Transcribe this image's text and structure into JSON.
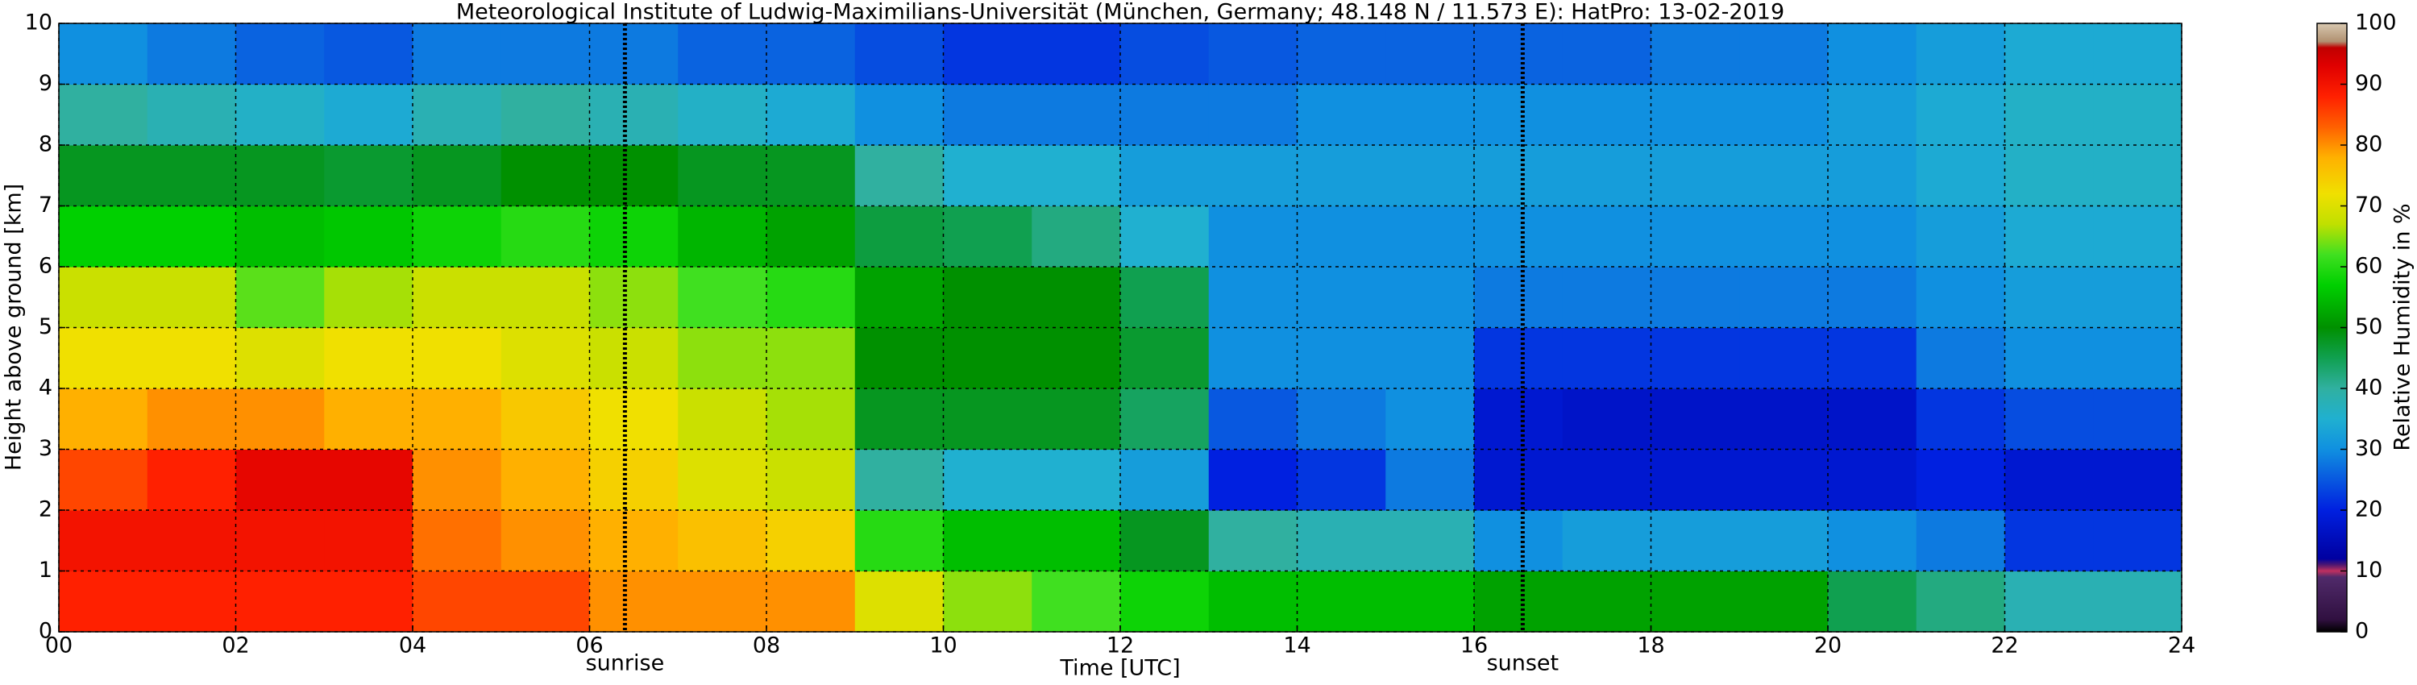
{
  "chart_data": {
    "type": "heatmap",
    "title": "Meteorological Institute of Ludwig-Maximilians-Universität (München, Germany; 48.148 N / 11.573 E):    HatPro: 13-02-2019",
    "xlabel": "Time [UTC]",
    "ylabel": "Height above ground [km]",
    "xlim": [
      0,
      24
    ],
    "ylim": [
      0,
      10
    ],
    "xticks": [
      {
        "value": 0,
        "label": "00"
      },
      {
        "value": 2,
        "label": "02"
      },
      {
        "value": 4,
        "label": "04"
      },
      {
        "value": 6,
        "label": "06"
      },
      {
        "value": 8,
        "label": "08"
      },
      {
        "value": 10,
        "label": "10"
      },
      {
        "value": 12,
        "label": "12"
      },
      {
        "value": 14,
        "label": "14"
      },
      {
        "value": 16,
        "label": "16"
      },
      {
        "value": 18,
        "label": "18"
      },
      {
        "value": 20,
        "label": "20"
      },
      {
        "value": 22,
        "label": "22"
      },
      {
        "value": 24,
        "label": "24"
      }
    ],
    "yticks": [
      0,
      1,
      2,
      3,
      4,
      5,
      6,
      7,
      8,
      9,
      10
    ],
    "grid": true,
    "xbins": [
      0,
      1,
      2,
      3,
      4,
      5,
      6,
      7,
      8,
      9,
      10,
      11,
      12,
      13,
      14,
      15,
      16,
      17,
      18,
      19,
      20,
      21,
      22,
      23,
      24
    ],
    "ybins": [
      0,
      1,
      2,
      3,
      4,
      5,
      6,
      7,
      8,
      9,
      10
    ],
    "z": [
      [
        88,
        88,
        88,
        88,
        85,
        85,
        80,
        80,
        80,
        70,
        65,
        62,
        58,
        55,
        55,
        55,
        52,
        52,
        52,
        52,
        45,
        42,
        38,
        38
      ],
      [
        90,
        90,
        90,
        90,
        82,
        80,
        78,
        76,
        74,
        60,
        55,
        55,
        48,
        40,
        38,
        38,
        30,
        32,
        32,
        32,
        30,
        28,
        22,
        22
      ],
      [
        85,
        88,
        92,
        92,
        80,
        78,
        74,
        70,
        68,
        40,
        35,
        35,
        32,
        20,
        22,
        28,
        18,
        18,
        18,
        18,
        18,
        20,
        18,
        18
      ],
      [
        78,
        80,
        80,
        78,
        78,
        75,
        72,
        68,
        66,
        48,
        48,
        48,
        44,
        25,
        28,
        30,
        18,
        17,
        17,
        17,
        17,
        22,
        24,
        24
      ],
      [
        72,
        72,
        70,
        72,
        72,
        70,
        68,
        65,
        65,
        50,
        50,
        50,
        47,
        30,
        30,
        30,
        22,
        22,
        22,
        22,
        22,
        28,
        30,
        30
      ],
      [
        68,
        68,
        63,
        66,
        68,
        68,
        65,
        62,
        60,
        52,
        50,
        50,
        45,
        30,
        30,
        30,
        28,
        28,
        28,
        28,
        28,
        30,
        32,
        32
      ],
      [
        57,
        57,
        55,
        56,
        58,
        60,
        58,
        54,
        52,
        46,
        45,
        42,
        35,
        30,
        30,
        30,
        30,
        30,
        30,
        30,
        30,
        32,
        34,
        34
      ],
      [
        48,
        48,
        48,
        47,
        48,
        50,
        50,
        48,
        48,
        40,
        35,
        35,
        32,
        32,
        32,
        32,
        32,
        32,
        32,
        32,
        32,
        34,
        36,
        36
      ],
      [
        40,
        38,
        36,
        34,
        38,
        40,
        38,
        36,
        34,
        30,
        28,
        28,
        28,
        28,
        30,
        30,
        30,
        30,
        30,
        30,
        32,
        34,
        36,
        36
      ],
      [
        30,
        28,
        26,
        25,
        28,
        28,
        28,
        26,
        26,
        24,
        22,
        22,
        24,
        25,
        26,
        26,
        26,
        26,
        28,
        28,
        30,
        32,
        34,
        34
      ]
    ],
    "annotations": [
      {
        "text": "sunrise",
        "x": 6.4
      },
      {
        "text": "sunset",
        "x": 16.55
      }
    ],
    "colorbar": {
      "label": "Relative Humidity in %",
      "lim": [
        0,
        100
      ],
      "ticks": [
        0,
        10,
        20,
        30,
        40,
        50,
        60,
        70,
        80,
        90,
        100
      ]
    },
    "colorscale": [
      [
        0,
        "#000000"
      ],
      [
        2,
        "#301040"
      ],
      [
        9,
        "#502a6a"
      ],
      [
        10,
        "#c03060"
      ],
      [
        11,
        "#501870"
      ],
      [
        12,
        "#0000a0"
      ],
      [
        20,
        "#0020e0"
      ],
      [
        30,
        "#1090e0"
      ],
      [
        35,
        "#20b0d0"
      ],
      [
        40,
        "#30b0a0"
      ],
      [
        45,
        "#10a050"
      ],
      [
        50,
        "#009000"
      ],
      [
        57,
        "#00d000"
      ],
      [
        62,
        "#40e020"
      ],
      [
        67,
        "#c0e000"
      ],
      [
        72,
        "#f0e000"
      ],
      [
        78,
        "#ffb000"
      ],
      [
        83,
        "#ff6000"
      ],
      [
        88,
        "#ff2000"
      ],
      [
        93,
        "#e00000"
      ],
      [
        96,
        "#c00000"
      ],
      [
        97,
        "#b09070"
      ],
      [
        100,
        "#d8c8b0"
      ]
    ]
  }
}
